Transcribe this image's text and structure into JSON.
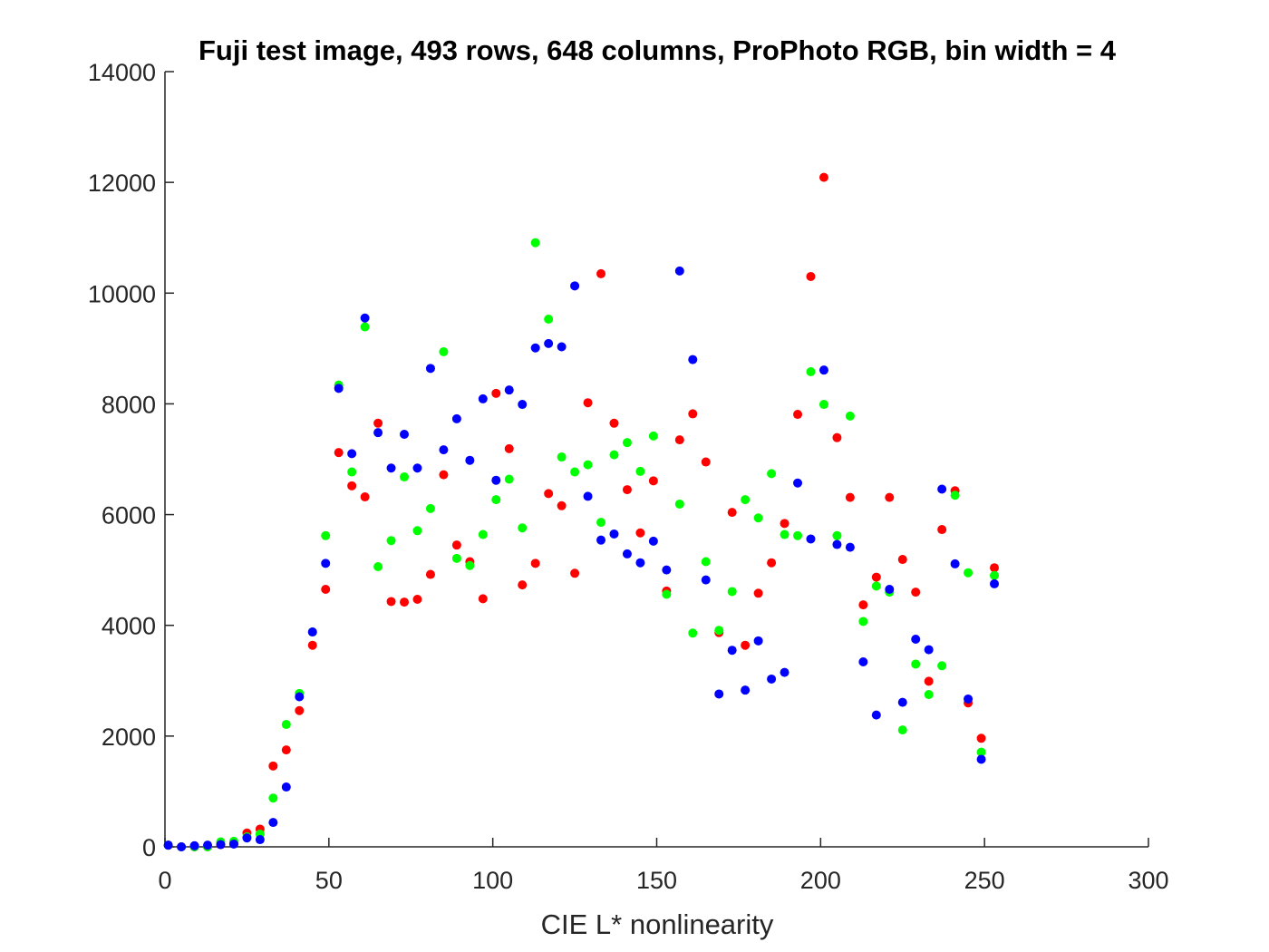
{
  "chart_data": {
    "type": "scatter",
    "title": "Fuji test image, 493 rows, 648 columns, ProPhoto RGB, bin width = 4",
    "xlabel": "CIE L* nonlinearity",
    "ylabel": "",
    "xlim": [
      0,
      300
    ],
    "ylim": [
      0,
      14000
    ],
    "x_ticks": [
      "0",
      "50",
      "100",
      "150",
      "200",
      "250",
      "300"
    ],
    "y_ticks": [
      "0",
      "2000",
      "4000",
      "6000",
      "8000",
      "10000",
      "12000",
      "14000"
    ],
    "x_tick_values": [
      0,
      50,
      100,
      150,
      200,
      250,
      300
    ],
    "y_tick_values": [
      0,
      2000,
      4000,
      6000,
      8000,
      10000,
      12000,
      14000
    ],
    "grid": false,
    "series": [
      {
        "color": "#ff0000",
        "points": [
          [
            1,
            30
          ],
          [
            5,
            0
          ],
          [
            9,
            0
          ],
          [
            13,
            0
          ],
          [
            17,
            40
          ],
          [
            21,
            60
          ],
          [
            25,
            250
          ],
          [
            29,
            320
          ],
          [
            33,
            1460
          ],
          [
            37,
            1750
          ],
          [
            41,
            2460
          ],
          [
            45,
            3640
          ],
          [
            49,
            4650
          ],
          [
            53,
            7120
          ],
          [
            57,
            6520
          ],
          [
            61,
            6320
          ],
          [
            65,
            7650
          ],
          [
            69,
            4430
          ],
          [
            73,
            4420
          ],
          [
            77,
            4470
          ],
          [
            81,
            4920
          ],
          [
            85,
            6720
          ],
          [
            89,
            5450
          ],
          [
            93,
            5150
          ],
          [
            97,
            4480
          ],
          [
            101,
            8190
          ],
          [
            105,
            7190
          ],
          [
            109,
            4730
          ],
          [
            113,
            5120
          ],
          [
            117,
            6380
          ],
          [
            121,
            6160
          ],
          [
            125,
            4940
          ],
          [
            129,
            8020
          ],
          [
            133,
            10350
          ],
          [
            137,
            7650
          ],
          [
            141,
            6450
          ],
          [
            145,
            5670
          ],
          [
            149,
            6610
          ],
          [
            153,
            4620
          ],
          [
            157,
            7350
          ],
          [
            161,
            7820
          ],
          [
            165,
            6950
          ],
          [
            169,
            3870
          ],
          [
            173,
            6040
          ],
          [
            177,
            3640
          ],
          [
            181,
            4580
          ],
          [
            185,
            5130
          ],
          [
            189,
            5840
          ],
          [
            193,
            7810
          ],
          [
            197,
            10300
          ],
          [
            201,
            12090
          ],
          [
            205,
            7390
          ],
          [
            209,
            6310
          ],
          [
            213,
            4370
          ],
          [
            217,
            4870
          ],
          [
            221,
            6310
          ],
          [
            225,
            5190
          ],
          [
            229,
            4600
          ],
          [
            233,
            2990
          ],
          [
            237,
            5730
          ],
          [
            241,
            6430
          ],
          [
            245,
            2600
          ],
          [
            249,
            1960
          ],
          [
            253,
            5040
          ]
        ]
      },
      {
        "color": "#00ff00",
        "points": [
          [
            1,
            30
          ],
          [
            5,
            0
          ],
          [
            9,
            0
          ],
          [
            13,
            0
          ],
          [
            17,
            90
          ],
          [
            21,
            100
          ],
          [
            25,
            180
          ],
          [
            29,
            230
          ],
          [
            33,
            880
          ],
          [
            37,
            2210
          ],
          [
            41,
            2770
          ],
          [
            45,
            3880
          ],
          [
            49,
            5620
          ],
          [
            53,
            8340
          ],
          [
            57,
            6770
          ],
          [
            61,
            9390
          ],
          [
            65,
            5060
          ],
          [
            69,
            5530
          ],
          [
            73,
            6680
          ],
          [
            77,
            5710
          ],
          [
            81,
            6110
          ],
          [
            85,
            8940
          ],
          [
            89,
            5210
          ],
          [
            93,
            5080
          ],
          [
            97,
            5640
          ],
          [
            101,
            6270
          ],
          [
            105,
            6640
          ],
          [
            109,
            5760
          ],
          [
            113,
            10910
          ],
          [
            117,
            9530
          ],
          [
            121,
            7040
          ],
          [
            125,
            6770
          ],
          [
            129,
            6900
          ],
          [
            133,
            5860
          ],
          [
            137,
            7080
          ],
          [
            141,
            7300
          ],
          [
            145,
            6780
          ],
          [
            149,
            7420
          ],
          [
            153,
            4560
          ],
          [
            157,
            6190
          ],
          [
            161,
            3860
          ],
          [
            165,
            5150
          ],
          [
            169,
            3910
          ],
          [
            173,
            4610
          ],
          [
            177,
            6270
          ],
          [
            181,
            5940
          ],
          [
            185,
            6740
          ],
          [
            189,
            5640
          ],
          [
            193,
            5620
          ],
          [
            197,
            8580
          ],
          [
            201,
            7990
          ],
          [
            205,
            5620
          ],
          [
            209,
            7780
          ],
          [
            213,
            4070
          ],
          [
            217,
            4710
          ],
          [
            221,
            4600
          ],
          [
            225,
            2110
          ],
          [
            229,
            3300
          ],
          [
            233,
            2750
          ],
          [
            237,
            3270
          ],
          [
            241,
            6350
          ],
          [
            245,
            4950
          ],
          [
            249,
            1710
          ],
          [
            253,
            4900
          ]
        ]
      },
      {
        "color": "#0000ff",
        "points": [
          [
            1,
            30
          ],
          [
            5,
            0
          ],
          [
            9,
            20
          ],
          [
            13,
            30
          ],
          [
            17,
            40
          ],
          [
            21,
            50
          ],
          [
            25,
            160
          ],
          [
            29,
            130
          ],
          [
            33,
            440
          ],
          [
            37,
            1080
          ],
          [
            41,
            2710
          ],
          [
            45,
            3880
          ],
          [
            49,
            5120
          ],
          [
            53,
            8280
          ],
          [
            57,
            7100
          ],
          [
            61,
            9550
          ],
          [
            65,
            7480
          ],
          [
            69,
            6840
          ],
          [
            73,
            7450
          ],
          [
            77,
            6840
          ],
          [
            81,
            8640
          ],
          [
            85,
            7170
          ],
          [
            89,
            7730
          ],
          [
            93,
            6980
          ],
          [
            97,
            8090
          ],
          [
            101,
            6620
          ],
          [
            105,
            8250
          ],
          [
            109,
            7990
          ],
          [
            113,
            9010
          ],
          [
            117,
            9090
          ],
          [
            121,
            9030
          ],
          [
            125,
            10130
          ],
          [
            129,
            6330
          ],
          [
            133,
            5540
          ],
          [
            137,
            5650
          ],
          [
            141,
            5290
          ],
          [
            145,
            5130
          ],
          [
            149,
            5520
          ],
          [
            153,
            5000
          ],
          [
            157,
            10400
          ],
          [
            161,
            8800
          ],
          [
            165,
            4820
          ],
          [
            169,
            2760
          ],
          [
            173,
            3550
          ],
          [
            177,
            2830
          ],
          [
            181,
            3720
          ],
          [
            185,
            3030
          ],
          [
            189,
            3150
          ],
          [
            193,
            6570
          ],
          [
            197,
            5560
          ],
          [
            201,
            8610
          ],
          [
            205,
            5460
          ],
          [
            209,
            5410
          ],
          [
            213,
            3340
          ],
          [
            217,
            2380
          ],
          [
            221,
            4650
          ],
          [
            225,
            2610
          ],
          [
            229,
            3750
          ],
          [
            233,
            3560
          ],
          [
            237,
            6460
          ],
          [
            241,
            5110
          ],
          [
            245,
            2670
          ],
          [
            249,
            1580
          ],
          [
            253,
            4750
          ]
        ]
      }
    ]
  }
}
